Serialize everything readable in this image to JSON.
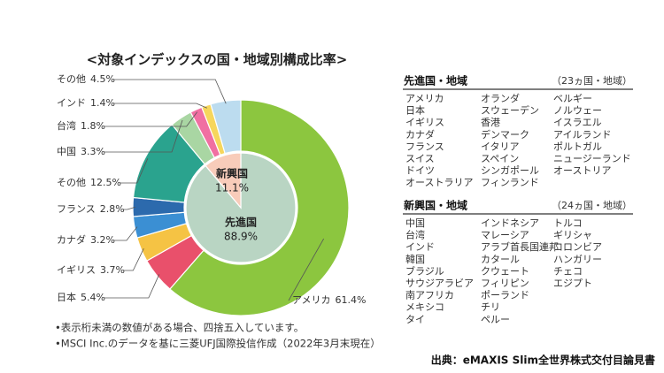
{
  "chart_data": {
    "type": "pie",
    "title": "<対象インデックスの国・地域別構成比率>",
    "rings": [
      {
        "categories": [
          "先進国",
          "新興国"
        ],
        "values": [
          88.9,
          11.1
        ],
        "value_labels": [
          "88.9%",
          "11.1%"
        ],
        "colors": [
          "#b9d5c3",
          "#f8ccba"
        ]
      },
      {
        "categories": [
          "アメリカ",
          "日本",
          "イギリス",
          "カナダ",
          "フランス",
          "その他",
          "中国",
          "台湾",
          "インド",
          "その他"
        ],
        "values": [
          61.4,
          5.4,
          3.7,
          3.2,
          2.8,
          12.5,
          3.3,
          1.8,
          1.4,
          4.5
        ],
        "value_labels": [
          "61.4%",
          "5.4%",
          "3.7%",
          "3.2%",
          "2.8%",
          "12.5%",
          "3.3%",
          "1.8%",
          "1.4%",
          "4.5%"
        ],
        "colors": [
          "#8cc63f",
          "#e9506b",
          "#f5c344",
          "#3b8fd3",
          "#2c6aad",
          "#2aa38e",
          "#a9d6a3",
          "#f06fa2",
          "#f6d65c",
          "#bcdcef"
        ]
      }
    ]
  },
  "regions": [
    {
      "title": "先進国・地域",
      "count": "（23ヵ国・地域）",
      "columns": [
        [
          "アメリカ",
          "日本",
          "イギリス",
          "カナダ",
          "フランス",
          "スイス",
          "ドイツ",
          "オーストラリア"
        ],
        [
          "オランダ",
          "スウェーデン",
          "香港",
          "デンマーク",
          "イタリア",
          "スペイン",
          "シンガポール",
          "フィンランド"
        ],
        [
          "ベルギー",
          "ノルウェー",
          "イスラエル",
          "アイルランド",
          "ポルトガル",
          "ニュージーランド",
          "オーストリア"
        ]
      ]
    },
    {
      "title": "新興国・地域",
      "count": "（24ヵ国・地域）",
      "columns": [
        [
          "中国",
          "台湾",
          "インド",
          "韓国",
          "ブラジル",
          "サウジアラビア",
          "南アフリカ",
          "メキシコ",
          "タイ"
        ],
        [
          "インドネシア",
          "マレーシア",
          "アラブ首長国連邦",
          "カタール",
          "クウェート",
          "フィリピン",
          "ポーランド",
          "チリ",
          "ペルー"
        ],
        [
          "トルコ",
          "ギリシャ",
          "コロンビア",
          "ハンガリー",
          "チェコ",
          "エジプト"
        ]
      ]
    }
  ],
  "notes": [
    "•表示桁未満の数値がある場合、四捨五入しています。",
    "•MSCI Inc.のデータを基に三菱UFJ国際投信作成（2022年3月末現在）"
  ],
  "source": "出典：eMAXIS Slim全世界株式交付目論見書"
}
